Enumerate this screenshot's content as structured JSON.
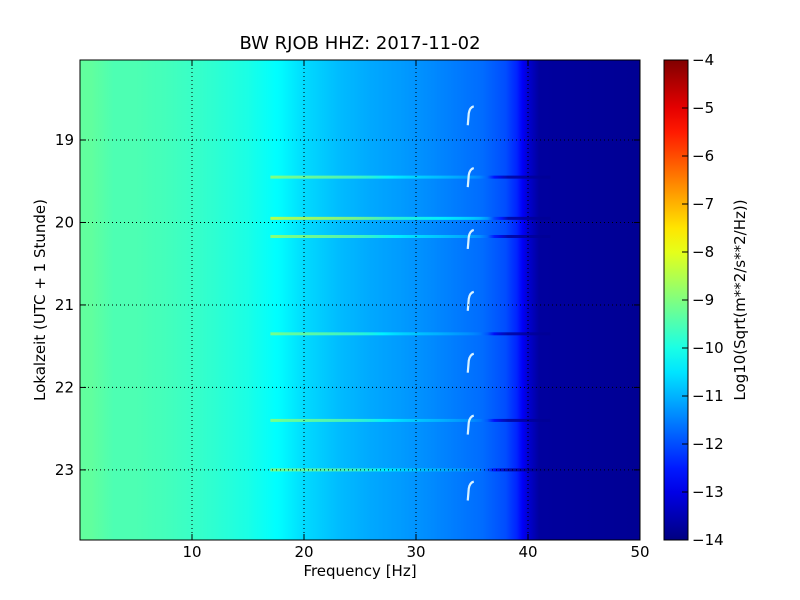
{
  "chart_data": {
    "type": "heatmap",
    "title": "BW RJOB HHZ: 2017-11-02",
    "xlabel": "Frequency [Hz]",
    "ylabel": "Lokalzeit (UTC + 1 Stunde)",
    "colorbar_label": "Log10(Sqrt(m**2/s**2/Hz))",
    "xlim": [
      0,
      50
    ],
    "ylim": [
      18.03,
      23.85
    ],
    "y_inverted": true,
    "x_ticks": [
      10,
      20,
      30,
      40,
      50
    ],
    "x_tick_labels": [
      "10",
      "20",
      "30",
      "40",
      "50"
    ],
    "y_ticks": [
      19,
      20,
      21,
      22,
      23
    ],
    "y_tick_labels": [
      "19",
      "20",
      "21",
      "22",
      "23"
    ],
    "colorbar_range": [
      -14,
      -4
    ],
    "colorbar_ticks": [
      -4,
      -5,
      -6,
      -7,
      -8,
      -9,
      -10,
      -11,
      -12,
      -13,
      -14
    ],
    "colorbar_tick_labels": [
      "−4",
      "−5",
      "−6",
      "−7",
      "−8",
      "−9",
      "−10",
      "−11",
      "−12",
      "−13",
      "−14"
    ],
    "colormap": "jet",
    "grid": true,
    "spectrum_profile": {
      "frequency_hz": [
        0,
        1,
        3,
        5,
        8,
        10,
        12,
        15,
        18,
        20,
        23,
        26,
        30,
        33,
        36,
        38,
        39,
        40,
        41,
        50
      ],
      "log10_amplitude": [
        -9.3,
        -9.3,
        -9.5,
        -9.5,
        -9.6,
        -9.7,
        -9.8,
        -10.0,
        -10.3,
        -10.6,
        -10.9,
        -11.1,
        -11.3,
        -11.5,
        -11.7,
        -12.0,
        -12.4,
        -13.2,
        -13.7,
        -13.8
      ]
    },
    "horizontal_bands": [
      {
        "hour": 19.45,
        "log10_offset": 0.5
      },
      {
        "hour": 19.95,
        "log10_offset": 1.1
      },
      {
        "hour": 20.17,
        "log10_offset": 0.6
      },
      {
        "hour": 21.35,
        "log10_offset": 0.35
      },
      {
        "hour": 22.4,
        "log10_offset": 0.4
      },
      {
        "hour": 23.0,
        "log10_offset": 0.4
      }
    ],
    "recurring_features": [
      {
        "freq_hz": 34.8,
        "hour": 18.7
      },
      {
        "freq_hz": 34.8,
        "hour": 19.45
      },
      {
        "freq_hz": 34.8,
        "hour": 20.2
      },
      {
        "freq_hz": 34.8,
        "hour": 20.95
      },
      {
        "freq_hz": 34.8,
        "hour": 21.7
      },
      {
        "freq_hz": 34.8,
        "hour": 22.45
      },
      {
        "freq_hz": 34.8,
        "hour": 23.25
      }
    ]
  }
}
